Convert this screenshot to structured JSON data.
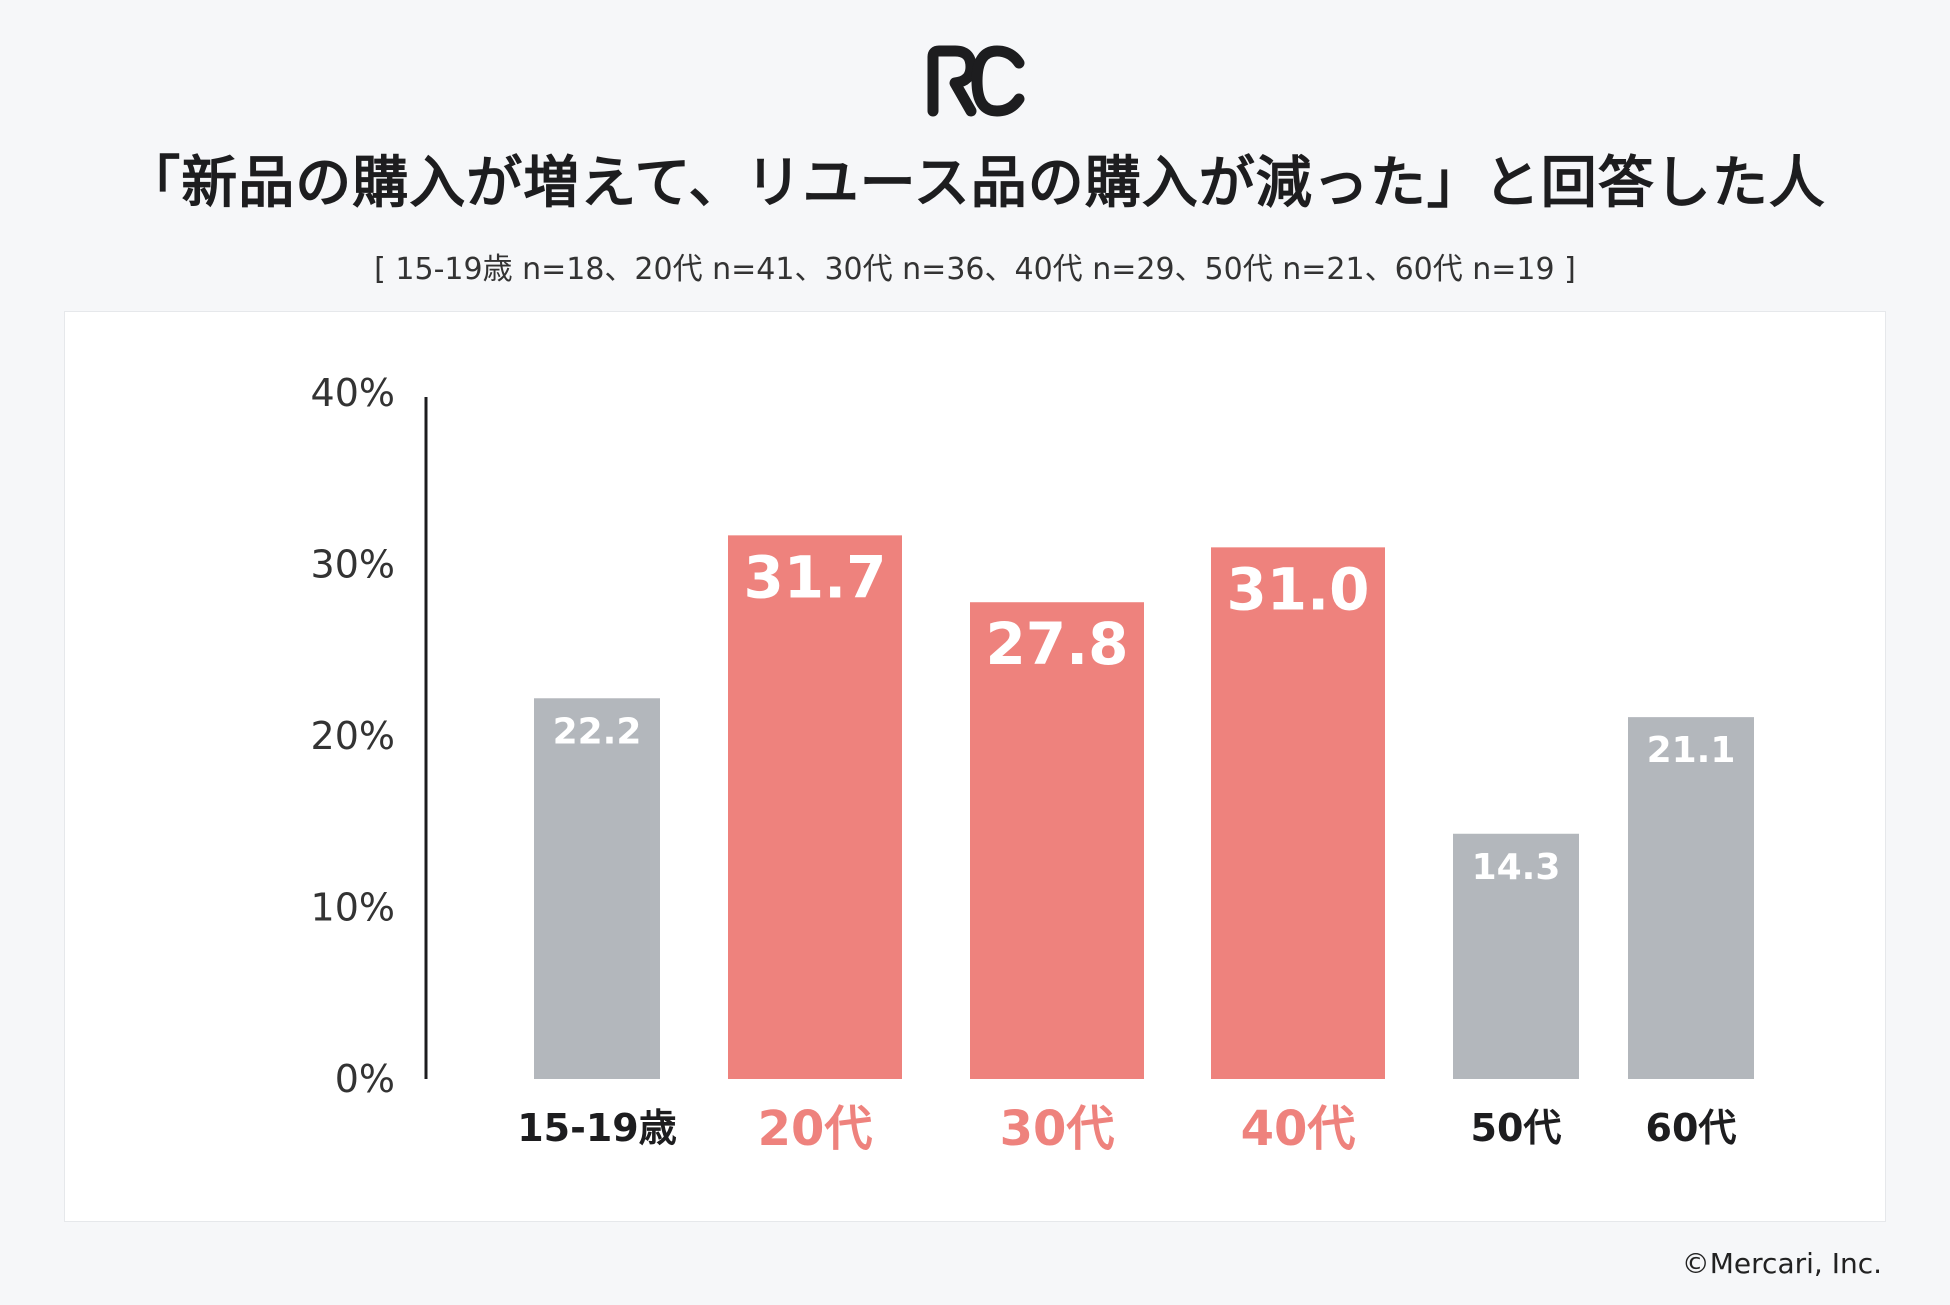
{
  "logo": {
    "text": "RC",
    "icon": "rc-logo-icon"
  },
  "header": {
    "title": "「新品の購入が増えて、リユース品の購入が減った」と回答した人",
    "subtitle": "[ 15-19歳 n=18、20代 n=41、30代 n=36、40代 n=29、50代 n=21、60代 n=19 ]"
  },
  "footer": {
    "copyright": "©Mercari, Inc."
  },
  "colors": {
    "highlight": "#ee827d",
    "neutral": "#b3b7bc",
    "axis": "#1d1d1f",
    "label_dark": "#1d1d1f"
  },
  "chart_data": {
    "type": "bar",
    "title": "「新品の購入が増えて、リユース品の購入が減った」と回答した人",
    "xlabel": "",
    "ylabel": "",
    "ylim": [
      0,
      40
    ],
    "y_ticks": [
      "0%",
      "10%",
      "20%",
      "30%",
      "40%"
    ],
    "y_tick_values": [
      0,
      10,
      20,
      30,
      40
    ],
    "grid": false,
    "categories": [
      "15-19歳",
      "20代",
      "30代",
      "40代",
      "50代",
      "60代"
    ],
    "values": [
      22.2,
      31.7,
      27.8,
      31.0,
      14.3,
      21.1
    ],
    "value_labels": [
      "22.2",
      "31.7",
      "27.8",
      "31.0",
      "14.3",
      "21.1"
    ],
    "highlighted": [
      false,
      true,
      true,
      true,
      false,
      false
    ]
  }
}
